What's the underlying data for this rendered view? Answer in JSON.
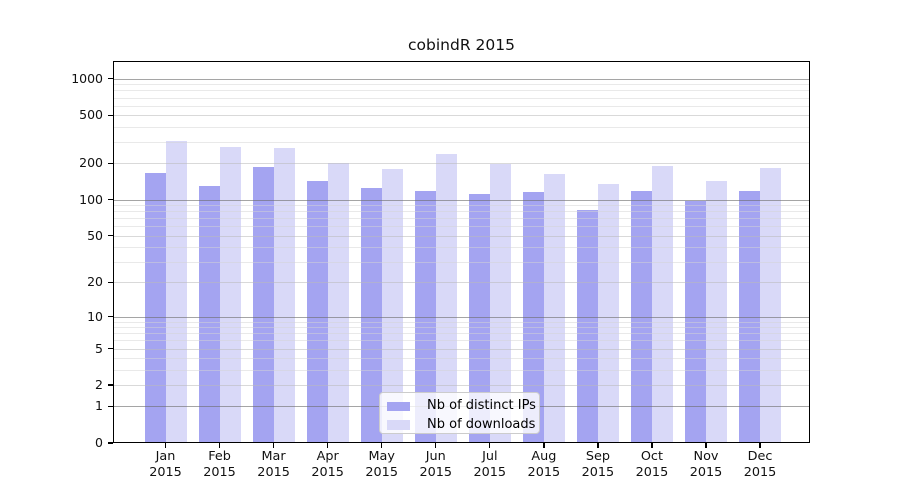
{
  "chart_data": {
    "type": "bar",
    "title": "cobindR 2015",
    "categories": [
      "Jan 2015",
      "Feb 2015",
      "Mar 2015",
      "Apr 2015",
      "May 2015",
      "Jun 2015",
      "Jul 2015",
      "Aug 2015",
      "Sep 2015",
      "Oct 2015",
      "Nov 2015",
      "Dec 2015"
    ],
    "series": [
      {
        "name": "Nb of distinct IPs",
        "color": "#a4a4f1",
        "values": [
          165,
          131,
          188,
          142,
          126,
          117,
          112,
          115,
          82,
          118,
          97,
          117
        ]
      },
      {
        "name": "Nb of downloads",
        "color": "#d9d9f8",
        "values": [
          308,
          272,
          270,
          200,
          179,
          240,
          197,
          162,
          135,
          192,
          144,
          184
        ]
      }
    ],
    "xlabel": "",
    "ylabel": "",
    "yscale": "log1p",
    "yticks": [
      0,
      1,
      2,
      5,
      10,
      20,
      50,
      100,
      200,
      500,
      1000
    ],
    "ylim": [
      0,
      1400
    ],
    "grid": "horizontal-on-top-of-bars",
    "legend_position": "inside-bottom-center"
  }
}
